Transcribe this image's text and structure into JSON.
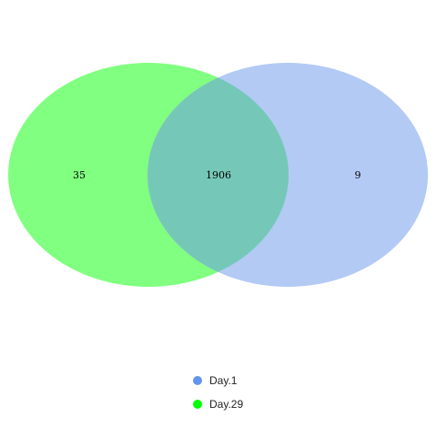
{
  "chart_data": {
    "type": "venn",
    "sets": [
      {
        "name": "Day.1",
        "color": "#6495ED",
        "fill": "#B3CAF5"
      },
      {
        "name": "Day.29",
        "color": "#00FF00",
        "fill": "#80FF80"
      }
    ],
    "regions": {
      "day29_only": 35,
      "both": 1906,
      "day1_only": 9
    },
    "overlap_color": "#75C8B8",
    "legend_position": "bottom"
  }
}
